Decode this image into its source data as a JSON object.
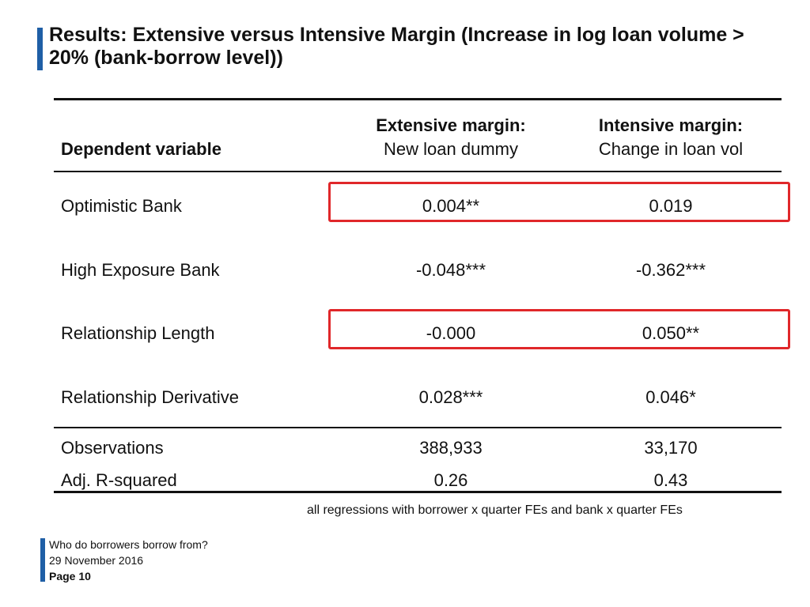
{
  "slide": {
    "title": "Results: Extensive versus Intensive Margin (Increase in log loan volume > 20% (bank-borrow level))"
  },
  "table": {
    "header": {
      "dependent_variable": "Dependent variable",
      "col1_line1": "Extensive margin:",
      "col1_line2": "New loan dummy",
      "col2_line1": "Intensive margin:",
      "col2_line2": "Change in loan vol"
    },
    "rows": [
      {
        "label": "Optimistic Bank",
        "col1": "0.004**",
        "col2": "0.019"
      },
      {
        "label": "High Exposure Bank",
        "col1": "-0.048***",
        "col2": "-0.362***"
      },
      {
        "label": "Relationship Length",
        "col1": "-0.000",
        "col2": "0.050**"
      },
      {
        "label": "Relationship Derivative",
        "col1": "0.028***",
        "col2": "0.046*"
      }
    ],
    "stats": [
      {
        "label": "Observations",
        "col1": "388,933",
        "col2": "33,170"
      },
      {
        "label": "Adj. R-squared",
        "col1": "0.26",
        "col2": "0.43"
      }
    ],
    "note": "all regressions with borrower x quarter FEs and bank x quarter FEs"
  },
  "footer": {
    "presentation_title": "Who do borrowers borrow from?",
    "date": "29 November 2016",
    "page": "Page 10"
  },
  "colors": {
    "accent_blue": "#1f5fa6",
    "highlight_red": "#e0272a"
  }
}
